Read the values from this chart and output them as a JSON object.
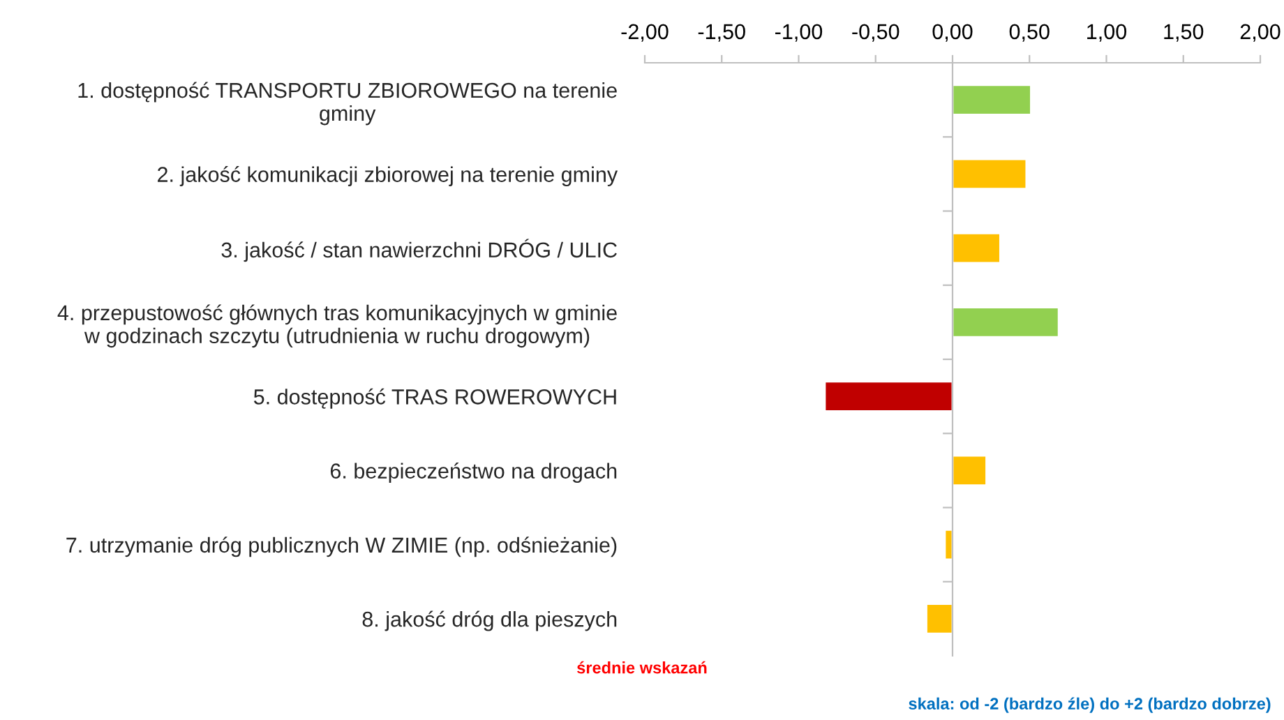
{
  "chart_data": {
    "type": "bar",
    "orientation": "horizontal",
    "categories": [
      "1. dostępność TRANSPORTU ZBIOROWEGO na terenie\ngminy",
      "2. jakość komunikacji zbiorowej na terenie gminy",
      "3. jakość / stan nawierzchni DRÓG / ULIC",
      "4. przepustowość głównych tras komunikacyjnych w gminie\nw godzinach szczytu (utrudnienia w ruchu drogowym)",
      "5. dostępność TRAS ROWEROWYCH",
      "6. bezpieczeństwo na drogach",
      "7. utrzymanie dróg publicznych W ZIMIE (np. odśnieżanie)",
      "8. jakość dróg dla pieszych"
    ],
    "values": [
      0.51,
      0.48,
      0.31,
      0.69,
      -0.83,
      0.22,
      -0.05,
      -0.17
    ],
    "colors": [
      "#92d050",
      "#ffc000",
      "#ffc000",
      "#92d050",
      "#c00000",
      "#ffc000",
      "#ffc000",
      "#ffc000"
    ],
    "xlim": [
      -2,
      2
    ],
    "xticks": [
      {
        "value": -2,
        "label": "-2,00"
      },
      {
        "value": -1.5,
        "label": "-1,50"
      },
      {
        "value": -1,
        "label": "-1,00"
      },
      {
        "value": -0.5,
        "label": "-0,50"
      },
      {
        "value": 0,
        "label": "0,00"
      },
      {
        "value": 0.5,
        "label": "0,50"
      },
      {
        "value": 1,
        "label": "1,00"
      },
      {
        "value": 1.5,
        "label": "1,50"
      },
      {
        "value": 2,
        "label": "2,00"
      }
    ],
    "annotations": [
      "średnie wskazań",
      "skala: od -2 (bardzo źle) do +2 (bardzo dobrze)"
    ],
    "legend": false
  }
}
